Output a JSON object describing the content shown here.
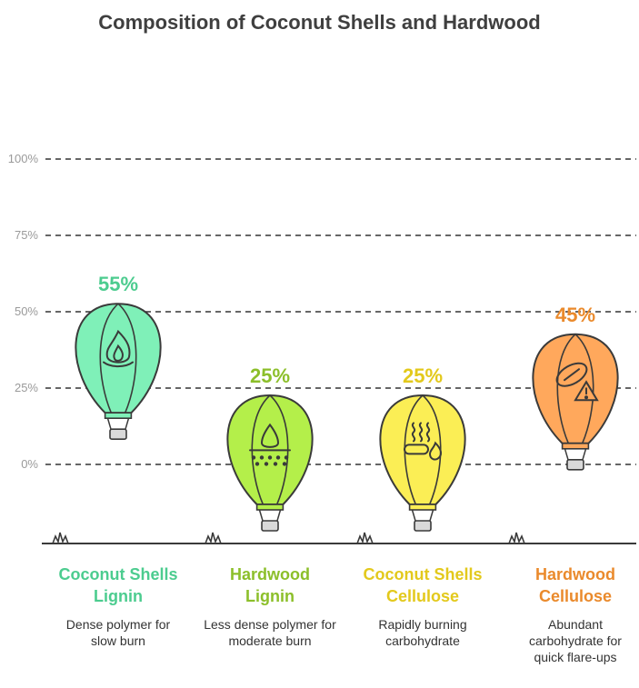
{
  "chart_data": {
    "type": "bar",
    "title": "Composition of Coconut Shells and Hardwood",
    "y_ticks": [
      "0%",
      "25%",
      "50%",
      "75%",
      "100%"
    ],
    "ylim": [
      0,
      100
    ],
    "grid": true,
    "categories": [
      {
        "title_line1": "Coconut Shells",
        "title_line2": "Lignin",
        "value": 55,
        "value_label": "55%",
        "description": "Dense polymer for slow burn",
        "color": "#4ccc8f",
        "fill": "#7ff0b8",
        "icon": "fire-icon"
      },
      {
        "title_line1": "Hardwood",
        "title_line2": "Lignin",
        "value": 25,
        "value_label": "25%",
        "description": "Less dense polymer for moderate burn",
        "color": "#8cbf2a",
        "fill": "#b4ef4a",
        "icon": "water-drop-soil-icon"
      },
      {
        "title_line1": "Coconut Shells",
        "title_line2": "Cellulose",
        "value": 25,
        "value_label": "25%",
        "description": "Rapidly burning carbohydrate",
        "color": "#e3c91c",
        "fill": "#fbee55",
        "icon": "burning-log-icon"
      },
      {
        "title_line1": "Hardwood",
        "title_line2": "Cellulose",
        "value": 45,
        "value_label": "45%",
        "description": "Abundant carbohydrate for quick flare-ups",
        "color": "#ea8a2c",
        "fill": "#ffa85c",
        "icon": "wood-warning-icon"
      }
    ]
  }
}
